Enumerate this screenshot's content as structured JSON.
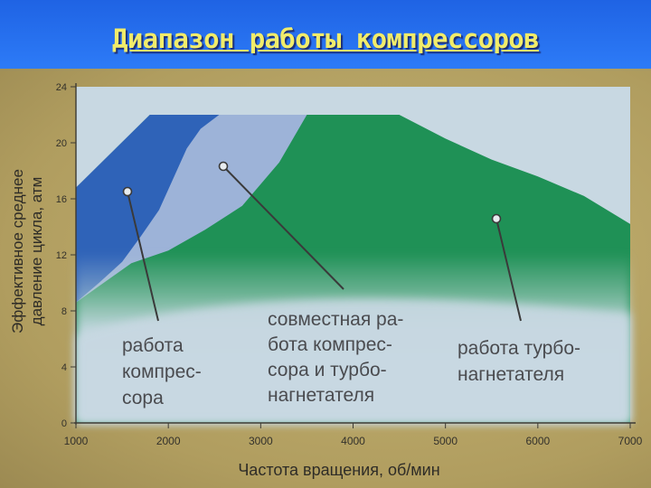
{
  "slide": {
    "title": "Диапазон работы компрессоров"
  },
  "chart_data": {
    "type": "area",
    "ylabel": [
      "Эффективное среднее",
      "давление цикла, атм"
    ],
    "xlabel": "Частота вращения, об/мин",
    "xlim": [
      1000,
      7000
    ],
    "ylim": [
      0,
      24
    ],
    "x_ticks": [
      1000,
      2000,
      3000,
      4000,
      5000,
      6000,
      7000
    ],
    "x_tick_labels": [
      "1000",
      "2000",
      "3000",
      "4000",
      "5000",
      "6000",
      "7000"
    ],
    "y_ticks": [
      0,
      4,
      8,
      12,
      16,
      20,
      24
    ],
    "y_tick_labels": [
      "0",
      "4",
      "8",
      "12",
      "16",
      "20",
      "24"
    ],
    "regions": [
      {
        "label": [
          "работа",
          "компрес-",
          "сора"
        ],
        "color": "#2f63b8",
        "boundary": [
          [
            1000,
            8.6
          ],
          [
            1250,
            10
          ],
          [
            1500,
            11.5
          ],
          [
            1700,
            13.3
          ],
          [
            1900,
            15.2
          ],
          [
            2050,
            17.4
          ],
          [
            2200,
            19.6
          ],
          [
            2350,
            21
          ],
          [
            2550,
            22
          ]
        ]
      },
      {
        "label": [
          "совместная ра-",
          "бота компрес-",
          "сора и турбо-",
          "нагнетателя"
        ],
        "color": "#9db3d8",
        "boundary": [
          [
            1000,
            8.6
          ],
          [
            1600,
            11.4
          ],
          [
            2000,
            12.3
          ],
          [
            2400,
            13.8
          ],
          [
            2800,
            15.5
          ],
          [
            3200,
            18.6
          ],
          [
            3500,
            22
          ]
        ]
      },
      {
        "label": [
          "работа турбо-",
          "нагнетателя"
        ],
        "color": "#1f9156",
        "upper_boundary": [
          [
            1000,
            16.8
          ],
          [
            1800,
            22
          ],
          [
            4500,
            22
          ],
          [
            5000,
            20.3
          ],
          [
            5500,
            18.8
          ],
          [
            6000,
            17.6
          ],
          [
            6500,
            16.2
          ],
          [
            7000,
            14.2
          ]
        ]
      }
    ],
    "grid": false,
    "legend": "none"
  },
  "colors": {
    "compressor": "#2f63b8",
    "joint": "#9db3d8",
    "turbo": "#1f9156",
    "low_zone": "#c8d8e2",
    "title_bg": "#2670ef",
    "title_text": "#f1ec6a"
  }
}
